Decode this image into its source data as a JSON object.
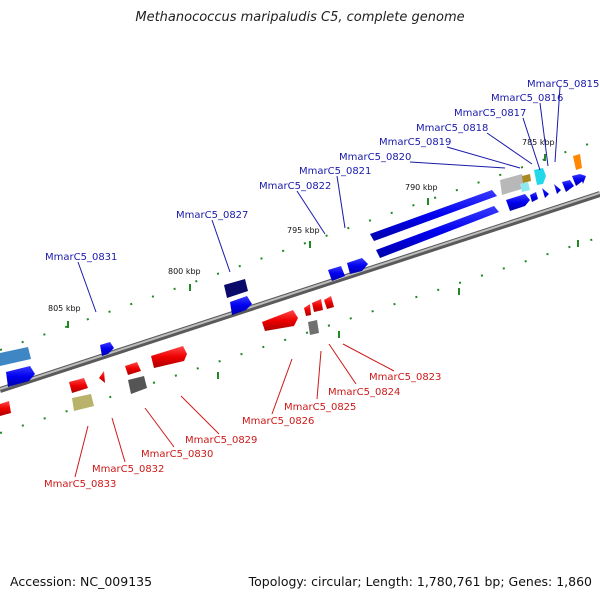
{
  "title": "Methanococcus maripaludis C5, complete genome",
  "footer": {
    "accession": "Accession: NC_009135",
    "summary": "Topology: circular; Length: 1,780,761 bp; Genes: 1,860"
  },
  "scale_labels": [
    "785 kbp",
    "790 kbp",
    "795 kbp",
    "800 kbp",
    "805 kbp"
  ],
  "colors": {
    "forward_gene": "#0000ee",
    "reverse_gene": "#ee0000",
    "forward_label": "#1a1aaa",
    "reverse_label": "#cc1a1a",
    "tick": "#228822",
    "backbone": "#777777"
  },
  "forward_genes": [
    "MmarC5_0815",
    "MmarC5_0816",
    "MmarC5_0817",
    "MmarC5_0818",
    "MmarC5_0819",
    "MmarC5_0820",
    "MmarC5_0821",
    "MmarC5_0822",
    "MmarC5_0827",
    "MmarC5_0831"
  ],
  "reverse_genes": [
    "MmarC5_0823",
    "MmarC5_0824",
    "MmarC5_0825",
    "MmarC5_0826",
    "MmarC5_0829",
    "MmarC5_0830",
    "MmarC5_0832",
    "MmarC5_0833"
  ]
}
